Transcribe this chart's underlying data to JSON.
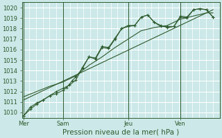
{
  "xlabel": "Pression niveau de la mer( hPa )",
  "ylim": [
    1009.5,
    1020.5
  ],
  "yticks": [
    1010,
    1011,
    1012,
    1013,
    1014,
    1015,
    1016,
    1017,
    1018,
    1019,
    1020
  ],
  "bg_color": "#cce8e8",
  "grid_color": "#aad4d4",
  "line_color": "#2d5a2d",
  "day_labels": [
    "Mer",
    "Sam",
    "Jeu",
    "Ven"
  ],
  "day_positions": [
    0,
    3,
    8,
    12
  ],
  "xlim": [
    -0.1,
    15.0
  ],
  "line1_x": [
    0,
    0.5,
    1,
    1.5,
    2,
    2.5,
    3,
    3.3,
    3.7,
    4,
    4.5,
    5,
    5.5,
    6,
    6.5,
    7,
    7.5,
    8,
    8.5,
    9,
    9.5,
    10,
    10.5,
    11,
    11.5,
    12,
    12.5,
    13,
    13.5,
    14,
    14.5
  ],
  "line1_y": [
    1009.7,
    1010.3,
    1010.8,
    1011.2,
    1011.6,
    1011.8,
    1012.1,
    1012.4,
    1013.0,
    1013.4,
    1014.2,
    1015.3,
    1015.1,
    1016.2,
    1016.1,
    1017.0,
    1018.0,
    1018.2,
    1018.3,
    1019.1,
    1019.3,
    1018.6,
    1018.3,
    1018.1,
    1018.2,
    1019.1,
    1019.0,
    1019.8,
    1019.9,
    1019.8,
    1019.1
  ],
  "line2_x": [
    0,
    0.5,
    1,
    1.5,
    2,
    2.5,
    3,
    3.5,
    4,
    4.5,
    5,
    5.5,
    6,
    6.5,
    7,
    7.5,
    8,
    8.5,
    9,
    9.5,
    10,
    10.5,
    11,
    11.5,
    12,
    12.5,
    13,
    13.5,
    14,
    14.5
  ],
  "line2_y": [
    1009.7,
    1010.5,
    1010.9,
    1011.2,
    1011.6,
    1012.0,
    1012.3,
    1012.6,
    1013.1,
    1014.3,
    1015.3,
    1015.2,
    1016.3,
    1016.2,
    1017.1,
    1018.0,
    1018.3,
    1018.3,
    1019.1,
    1019.3,
    1018.6,
    1018.2,
    1018.2,
    1018.2,
    1019.2,
    1019.1,
    1019.8,
    1019.9,
    1019.8,
    1019.1
  ],
  "line3_x": [
    0,
    1,
    2,
    3,
    4,
    5,
    6,
    7,
    8,
    9,
    10,
    11,
    12,
    13,
    14,
    14.5
  ],
  "line3_y": [
    1011.5,
    1012.0,
    1012.5,
    1012.9,
    1013.5,
    1014.5,
    1015.3,
    1016.2,
    1017.0,
    1017.8,
    1018.1,
    1018.3,
    1018.9,
    1019.2,
    1019.5,
    1019.5
  ],
  "line4_x": [
    0,
    14.5
  ],
  "line4_y": [
    1011.2,
    1019.8
  ],
  "vline_positions": [
    0,
    3,
    8,
    12
  ],
  "tick_fontsize": 6,
  "xlabel_fontsize": 7.5
}
